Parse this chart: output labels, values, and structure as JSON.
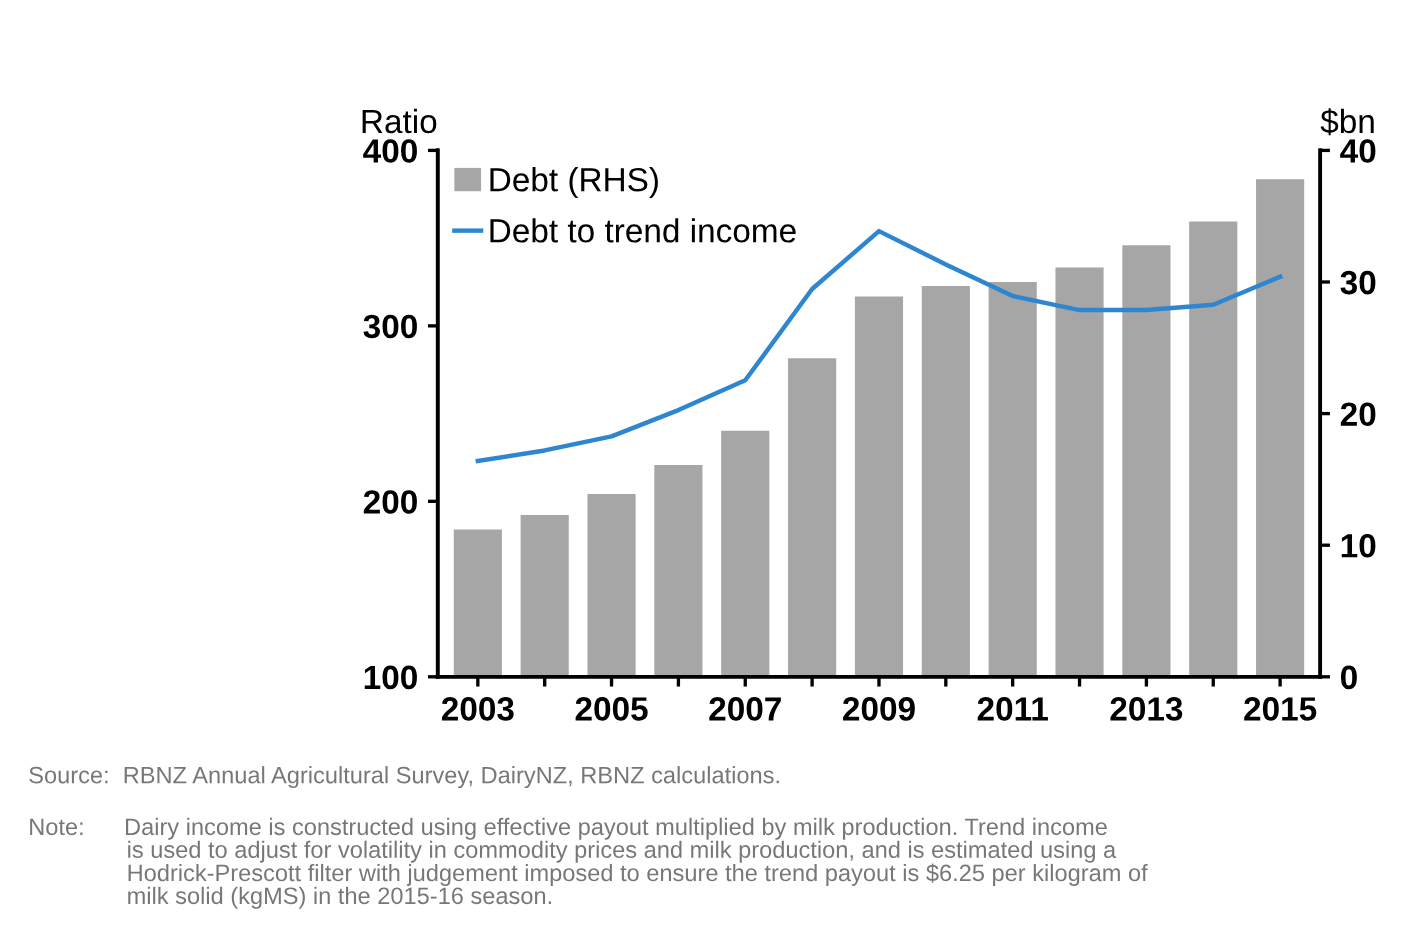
{
  "chart_data": {
    "type": "bar",
    "categories": [
      "2003",
      null,
      "2005",
      null,
      "2007",
      null,
      "2009",
      null,
      "2011",
      null,
      "2013",
      null,
      "2015"
    ],
    "series": [
      {
        "name": "Debt (RHS)",
        "axis": "y2",
        "color": "#a6a6a6",
        "values": [
          11.2,
          12.3,
          13.9,
          16.1,
          18.7,
          24.2,
          28.9,
          29.7,
          30.0,
          31.1,
          32.8,
          34.6,
          37.8
        ]
      },
      {
        "name": "Debt to trend income",
        "type": "line",
        "axis": "y",
        "color": "#2e86d0",
        "values": [
          223,
          229,
          237,
          252,
          269,
          321,
          354,
          335,
          317,
          309,
          309,
          312,
          328
        ]
      }
    ],
    "ylabel": "Ratio",
    "y2label": "$bn",
    "ylim": [
      100,
      400
    ],
    "yticks": [
      100,
      200,
      300,
      400
    ],
    "y2lim": [
      0,
      40
    ],
    "y2ticks": [
      0,
      10,
      20,
      30,
      40
    ],
    "legend": "top left",
    "grid": false,
    "marker": "none",
    "line_style": "solid",
    "annotations": [
      "Source:  RBNZ Annual Agricultural Survey, DairyNZ, RBNZ calculations.",
      "Note:      Dairy income is constructed using effective payout multiplied by milk production. Trend income\n               is used to adjust for volatility in commodity prices and milk production, and is estimated using a\n               Hodrick-Prescott filter with judgement imposed to ensure the trend payout is $6.25 per kilogram of\n               milk solid (kgMS) in the 2015-16 season."
    ]
  }
}
